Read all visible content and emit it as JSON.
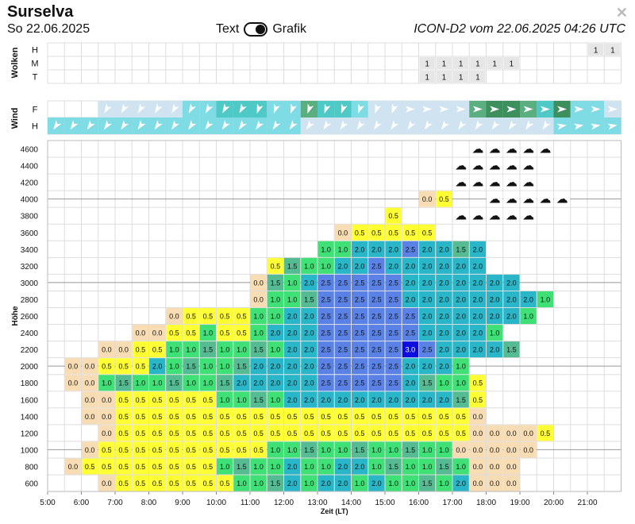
{
  "header": {
    "title": "Surselva",
    "date": "So 22.06.2025",
    "mode_text": "Text",
    "mode_grafik": "Grafik",
    "model": "ICON-D2 vom 22.06.2025 04:26 UTC"
  },
  "clouds": {
    "label": "Wolken",
    "rows": [
      {
        "name": "H",
        "values": {
          "32": "1",
          "33": "1"
        }
      },
      {
        "name": "M",
        "values": {
          "22": "1",
          "23": "1",
          "24": "1",
          "25": "1",
          "26": "1",
          "27": "1"
        }
      },
      {
        "name": "T",
        "values": {
          "22": "1",
          "23": "1",
          "24": "1",
          "25": "1"
        }
      }
    ]
  },
  "wind": {
    "label": "Wind",
    "rows": [
      "F",
      "H"
    ],
    "colors": {
      "light": "#cfe3f1",
      "cyan": "#7fdbe4",
      "teal": "#4fc9c6",
      "green": "#5aae80",
      "darkgreen": "#3e8f5e"
    },
    "F": [
      null,
      null,
      null,
      "light",
      "light",
      "light",
      "light",
      "light",
      "cyan",
      "cyan",
      "teal",
      "teal",
      "teal",
      "cyan",
      "cyan",
      "green",
      "teal",
      "teal",
      "cyan",
      "light",
      "light",
      "light",
      "light",
      "light",
      "light",
      "green",
      "darkgreen",
      "darkgreen",
      "green",
      "teal",
      "darkgreen",
      "cyan",
      "cyan",
      "light"
    ],
    "H": [
      "cyan",
      "cyan",
      "cyan",
      "cyan",
      "cyan",
      "cyan",
      "cyan",
      "cyan",
      "cyan",
      "cyan",
      "cyan",
      "cyan",
      "cyan",
      "cyan",
      "cyan",
      "light",
      "light",
      "light",
      "light",
      "light",
      "light",
      "light",
      "light",
      "light",
      "light",
      "light",
      "light",
      "light",
      "light",
      "light",
      "cyan",
      "cyan",
      "cyan",
      "cyan"
    ]
  },
  "chart_data": {
    "type": "heatmap",
    "xlabel": "Zeit (LT)",
    "ylabel": "Höhe",
    "x_ticks": [
      "5:00",
      "6:00",
      "7:00",
      "8:00",
      "9:00",
      "10:00",
      "11:00",
      "12:00",
      "13:00",
      "14:00",
      "15:00",
      "16:00",
      "17:00",
      "18:00",
      "19:00",
      "20:00",
      "21:00"
    ],
    "x_start": "5:00",
    "x_step_minutes": 30,
    "y_levels": [
      600,
      800,
      1000,
      1200,
      1400,
      1600,
      1800,
      2000,
      2200,
      2400,
      2600,
      2800,
      3000,
      3200,
      3400,
      3600,
      3800,
      4000,
      4200,
      4400,
      4600
    ],
    "value_scale": {
      "0.0": "#f7dcb4",
      "0.5": "#ffff33",
      "1.0": "#3fe075",
      "1.5": "#55bb92",
      "2.0": "#29b6c8",
      "2.5": "#5a82e6",
      "3.0": "#0d0de0"
    },
    "cloud_rows_from_top": [
      "                      ...ccccc      ",
      "                      ..ccccc       ",
      "                        ccccc       ",
      "                          ccccc     ",
      "                       .ccccc       "
    ],
    "rows_from_top": [
      "                                  ",
      "                                  ",
      "                                  ",
      "                      o5          ",
      "                    5             ",
      "                 o55555            ",
      "                1122232212         ",
      "             5111223222222         ",
      "            o112222232222222       ",
      "            o11122223222222221     ",
      "       o555511222222332222221      ",
      "     o055155122222223322221        ",
      "   oo55111111122222223322221       ",
      " oo5552111112222222232221         ",
      " o011111111222222222221115        ",
      "  o05555551111222222222215        ",
      "  o05555555555555555555550      ",
      "   o5555555555555555555550ooo5   ",
      "  o55555555551111111111100ooo     ",
      " o55555555111121122111111ooo      ",
      "   05555555111212212111120oo      "
    ]
  }
}
